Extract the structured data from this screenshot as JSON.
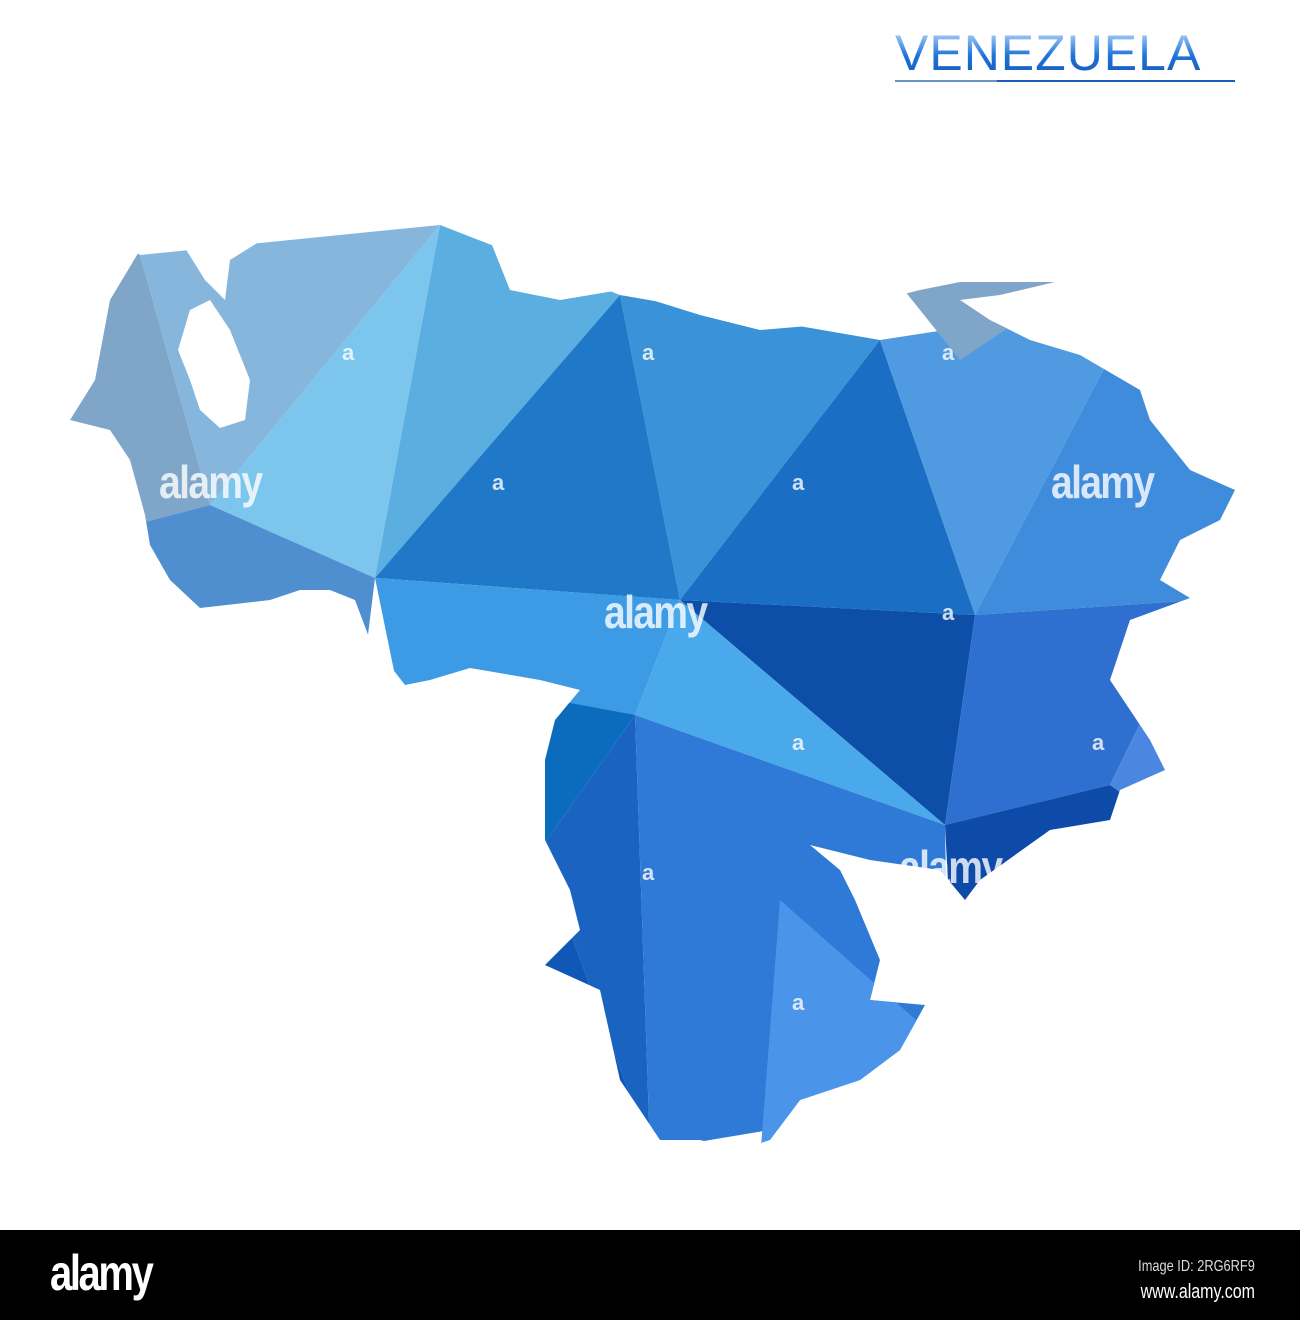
{
  "title": "VENEZUELA",
  "map": {
    "country": "Venezuela",
    "style": "low-poly gradient",
    "colors": {
      "light": "#8fd0f2",
      "mid": "#2f86d6",
      "dark": "#0a4aa3",
      "muted": "#7fa6c9"
    }
  },
  "watermark": {
    "text": "alamy",
    "mark": "a"
  },
  "footer": {
    "logo": "alamy",
    "image_id": "Image ID: 2RG6RF9",
    "url": "www.alamy.com"
  }
}
